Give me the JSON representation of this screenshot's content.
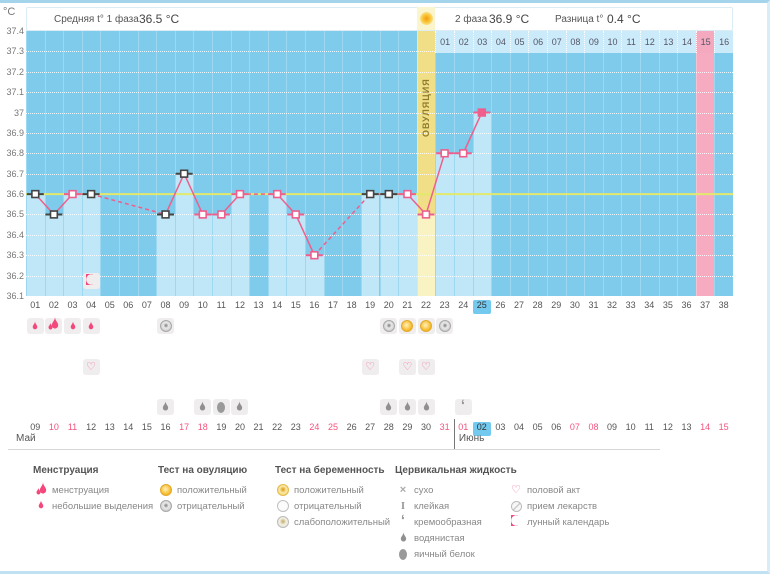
{
  "header": {
    "unit": "°C",
    "phase1": {
      "label": "Средняя t° 1 фаза",
      "value": "36.5 °C"
    },
    "phase2": {
      "label": "2 фаза",
      "value": "36.9 °C"
    },
    "diff": {
      "label": "Разница t°",
      "value": "0.4 °C"
    }
  },
  "chart_data": {
    "type": "line",
    "ylabel": "°C",
    "ylim": [
      36.1,
      37.4
    ],
    "ytick_labels": [
      "37.4",
      "37.3",
      "37.2",
      "37.1",
      "37",
      "36.9",
      "36.8",
      "36.7",
      "36.6",
      "36.5",
      "36.4",
      "36.3",
      "36.2",
      "36.1"
    ],
    "coverline": 36.6,
    "days_total": 38,
    "temps": [
      36.6,
      36.5,
      36.6,
      36.6,
      null,
      null,
      null,
      36.5,
      36.7,
      36.5,
      36.5,
      36.6,
      null,
      36.6,
      36.5,
      36.3,
      null,
      null,
      36.6,
      36.6,
      36.6,
      36.5,
      36.8,
      36.8,
      37.0,
      null,
      null,
      null,
      null,
      null,
      null,
      null,
      null,
      null,
      null,
      null,
      null,
      null
    ],
    "black_marker_days": [
      1,
      2,
      4,
      8,
      9,
      19,
      20
    ],
    "current_day": 25,
    "ovulation_day": 22,
    "ovulation_label": "ОВУЛЯЦИЯ",
    "expected_period_day": 37,
    "cycle_days": [
      "01",
      "02",
      "03",
      "04",
      "05",
      "06",
      "07",
      "08",
      "09",
      "10",
      "11",
      "12",
      "13",
      "14",
      "15",
      "16",
      "17",
      "18",
      "19",
      "20",
      "21",
      "22",
      "23",
      "24",
      "25",
      "26",
      "27",
      "28",
      "29",
      "30",
      "31",
      "32",
      "33",
      "34",
      "35",
      "36",
      "37",
      "38"
    ],
    "june_header": {
      "labels": [
        "01",
        "02",
        "03",
        "04",
        "05",
        "06",
        "07",
        "08",
        "09",
        "10",
        "11",
        "12",
        "13",
        "14",
        "15",
        "16"
      ],
      "pink_label": "15"
    }
  },
  "events": {
    "menstruation": {
      "1": "spotting",
      "2": "menses",
      "3": "spotting",
      "4": "spotting"
    },
    "ovulation_tests": {
      "8": "negative",
      "20": "negative",
      "21": "positive",
      "22": "positive",
      "23": "negative"
    },
    "intercourse_days": [
      4,
      19,
      21,
      22
    ],
    "cervical_fluid": {
      "8": "watery",
      "10": "watery",
      "11": "eggwhite",
      "12": "watery",
      "20": "watery",
      "21": "watery",
      "22": "watery",
      "24": "creamy"
    },
    "lunar_calendar_days": [
      4
    ]
  },
  "dates": [
    {
      "label": "09",
      "red": false
    },
    {
      "label": "10",
      "red": true
    },
    {
      "label": "11",
      "red": true
    },
    {
      "label": "12",
      "red": false
    },
    {
      "label": "13",
      "red": false
    },
    {
      "label": "14",
      "red": false
    },
    {
      "label": "15",
      "red": false
    },
    {
      "label": "16",
      "red": false
    },
    {
      "label": "17",
      "red": true
    },
    {
      "label": "18",
      "red": true
    },
    {
      "label": "19",
      "red": false
    },
    {
      "label": "20",
      "red": false
    },
    {
      "label": "21",
      "red": false
    },
    {
      "label": "22",
      "red": false
    },
    {
      "label": "23",
      "red": false
    },
    {
      "label": "24",
      "red": true
    },
    {
      "label": "25",
      "red": true
    },
    {
      "label": "26",
      "red": false
    },
    {
      "label": "27",
      "red": false
    },
    {
      "label": "28",
      "red": false
    },
    {
      "label": "29",
      "red": false
    },
    {
      "label": "30",
      "red": false
    },
    {
      "label": "31",
      "red": true
    },
    {
      "label": "01",
      "red": true
    },
    {
      "label": "02",
      "red": false,
      "highlight": true
    },
    {
      "label": "03",
      "red": false
    },
    {
      "label": "04",
      "red": false
    },
    {
      "label": "05",
      "red": false
    },
    {
      "label": "06",
      "red": false
    },
    {
      "label": "07",
      "red": true
    },
    {
      "label": "08",
      "red": true
    },
    {
      "label": "09",
      "red": false
    },
    {
      "label": "10",
      "red": false
    },
    {
      "label": "11",
      "red": false
    },
    {
      "label": "12",
      "red": false
    },
    {
      "label": "13",
      "red": false
    },
    {
      "label": "14",
      "red": true
    },
    {
      "label": "15",
      "red": true
    }
  ],
  "months": [
    {
      "label": "Май",
      "from_day": 1,
      "to_day": 23
    },
    {
      "label": "Июнь",
      "from_day": 24,
      "to_day": 38
    }
  ],
  "legend": {
    "columns": [
      {
        "title": "Менструация",
        "items": [
          {
            "icon": "menses-icon",
            "label": "менструация"
          },
          {
            "icon": "spotting-icon",
            "label": "небольшие выделения"
          }
        ]
      },
      {
        "title": "Тест на овуляцию",
        "items": [
          {
            "icon": "ovulation-test-positive-icon",
            "label": "положительный"
          },
          {
            "icon": "ovulation-test-negative-icon",
            "label": "отрицательный"
          }
        ]
      },
      {
        "title": "Тест на беременность",
        "items": [
          {
            "icon": "pregnancy-test-positive-icon",
            "label": "положительный"
          },
          {
            "icon": "pregnancy-test-negative-icon",
            "label": "отрицательный"
          },
          {
            "icon": "pregnancy-test-weak-positive-icon",
            "label": "слабоположительный"
          }
        ]
      },
      {
        "title": "Цервикальная жидкость",
        "items": [
          {
            "icon": "dry-icon",
            "label": "сухо"
          },
          {
            "icon": "sticky-icon",
            "label": "клейкая"
          },
          {
            "icon": "creamy-icon",
            "label": "кремообразная"
          },
          {
            "icon": "watery-icon",
            "label": "водянистая"
          },
          {
            "icon": "eggwhite-icon",
            "label": "яичный белок"
          }
        ]
      },
      {
        "title": "",
        "items": [
          {
            "icon": "intercourse-icon",
            "label": "половой акт"
          },
          {
            "icon": "medication-icon",
            "label": "прием лекарств"
          },
          {
            "icon": "lunar-icon",
            "label": "лунный календарь"
          }
        ]
      }
    ]
  },
  "colors": {
    "plot_bg": "#7ecbeb",
    "data_column": "#c0e7f7",
    "ovulation_band": "#f0df86",
    "ovulation_band_light": "#f9f2c2",
    "expected_period_column": "#f6abc1",
    "coverline": "#e3e96b",
    "line_pink": "#ee5f8d",
    "marker_black": "#444444",
    "current_day_highlight": "#74c9ef",
    "weekend_red": "#f4537e"
  }
}
